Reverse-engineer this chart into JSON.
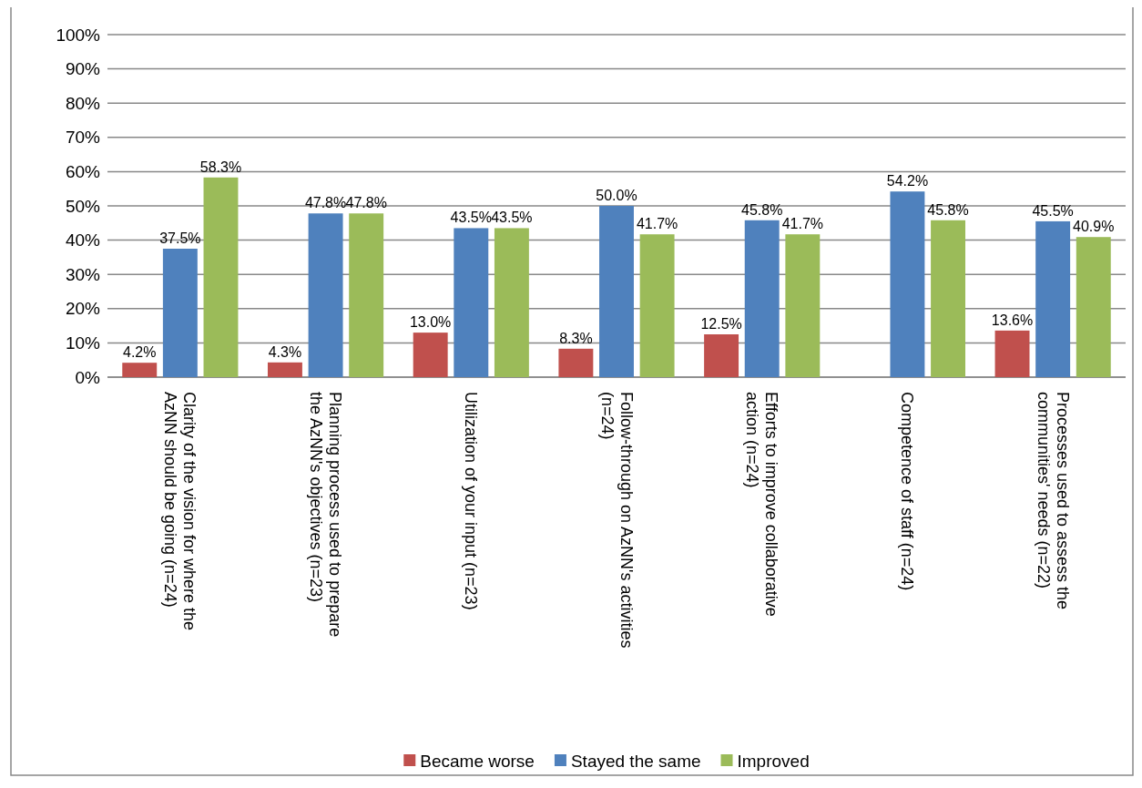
{
  "chart_data": {
    "type": "bar",
    "categories": [
      "Clarity of the vision for where the AzNN should be going (n=24)",
      "Planning process used to prepare the AzNN's objectives (n=23)",
      "Utilization of your input (n=23)",
      "Follow-through on AzNN's activities (n=24)",
      "Efforts to improve collaborative action (n=24)",
      "Competence of staff (n=24)",
      "Processes used to assess the communities' needs (n=22)"
    ],
    "series": [
      {
        "name": "Became worse",
        "color": "#c0504d",
        "values": [
          4.2,
          4.3,
          13.0,
          8.3,
          12.5,
          null,
          13.6
        ],
        "value_labels": [
          "4.2%",
          "4.3%",
          "13.0%",
          "8.3%",
          "12.5%",
          null,
          "13.6%"
        ]
      },
      {
        "name": "Stayed the same",
        "color": "#4f81bd",
        "values": [
          37.5,
          47.8,
          43.5,
          50.0,
          45.8,
          54.2,
          45.5
        ],
        "value_labels": [
          "37.5%",
          "47.8%",
          "43.5%",
          "50.0%",
          "45.8%",
          "54.2%",
          "45.5%"
        ]
      },
      {
        "name": "Improved",
        "color": "#9bbb59",
        "values": [
          58.3,
          47.8,
          43.5,
          41.7,
          41.7,
          45.8,
          40.9
        ],
        "value_labels": [
          "58.3%",
          "47.8%",
          "43.5%",
          "41.7%",
          "41.7%",
          "45.8%",
          "40.9%"
        ]
      }
    ],
    "ylim": [
      0,
      100
    ],
    "yticks": [
      {
        "value": 0,
        "label": "0%"
      },
      {
        "value": 10,
        "label": "10%"
      },
      {
        "value": 20,
        "label": "20%"
      },
      {
        "value": 30,
        "label": "30%"
      },
      {
        "value": 40,
        "label": "40%"
      },
      {
        "value": 50,
        "label": "50%"
      },
      {
        "value": 60,
        "label": "60%"
      },
      {
        "value": 70,
        "label": "70%"
      },
      {
        "value": 80,
        "label": "80%"
      },
      {
        "value": 90,
        "label": "90%"
      },
      {
        "value": 100,
        "label": "100%"
      }
    ],
    "grid": "y",
    "legend": "bottom"
  }
}
